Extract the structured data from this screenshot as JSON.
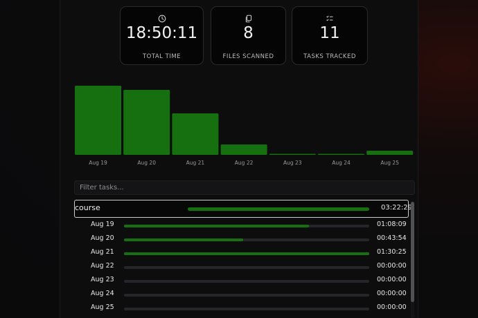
{
  "stats": [
    {
      "icon": "clock-icon",
      "value": "18:50:11",
      "label": "TOTAL TIME"
    },
    {
      "icon": "files-icon",
      "value": "8",
      "label": "FILES SCANNED"
    },
    {
      "icon": "checklist-icon",
      "value": "11",
      "label": "TASKS TRACKED"
    }
  ],
  "chart_data": {
    "type": "bar",
    "categories": [
      "Aug 19",
      "Aug 20",
      "Aug 21",
      "Aug 22",
      "Aug 23",
      "Aug 24",
      "Aug 25"
    ],
    "values": [
      1.0,
      0.94,
      0.6,
      0.15,
      0.01,
      0.01,
      0.06
    ],
    "title": "",
    "xlabel": "",
    "ylabel": "",
    "ylim": [
      0,
      1
    ],
    "grid": false,
    "color": "#17700f"
  },
  "filter": {
    "placeholder": "Filter tasks..."
  },
  "task": {
    "name": "course",
    "time": "03:22:29",
    "progress": 1.0
  },
  "days": [
    {
      "date": "Aug 19",
      "time": "01:08:09",
      "progress": 0.754
    },
    {
      "date": "Aug 20",
      "time": "00:43:54",
      "progress": 0.486
    },
    {
      "date": "Aug 21",
      "time": "01:30:25",
      "progress": 1.0
    },
    {
      "date": "Aug 22",
      "time": "00:00:00",
      "progress": 0
    },
    {
      "date": "Aug 23",
      "time": "00:00:00",
      "progress": 0
    },
    {
      "date": "Aug 24",
      "time": "00:00:00",
      "progress": 0
    },
    {
      "date": "Aug 25",
      "time": "00:00:00",
      "progress": 0
    }
  ],
  "colors": {
    "accent": "#17700f",
    "background": "#0d0d0e"
  }
}
